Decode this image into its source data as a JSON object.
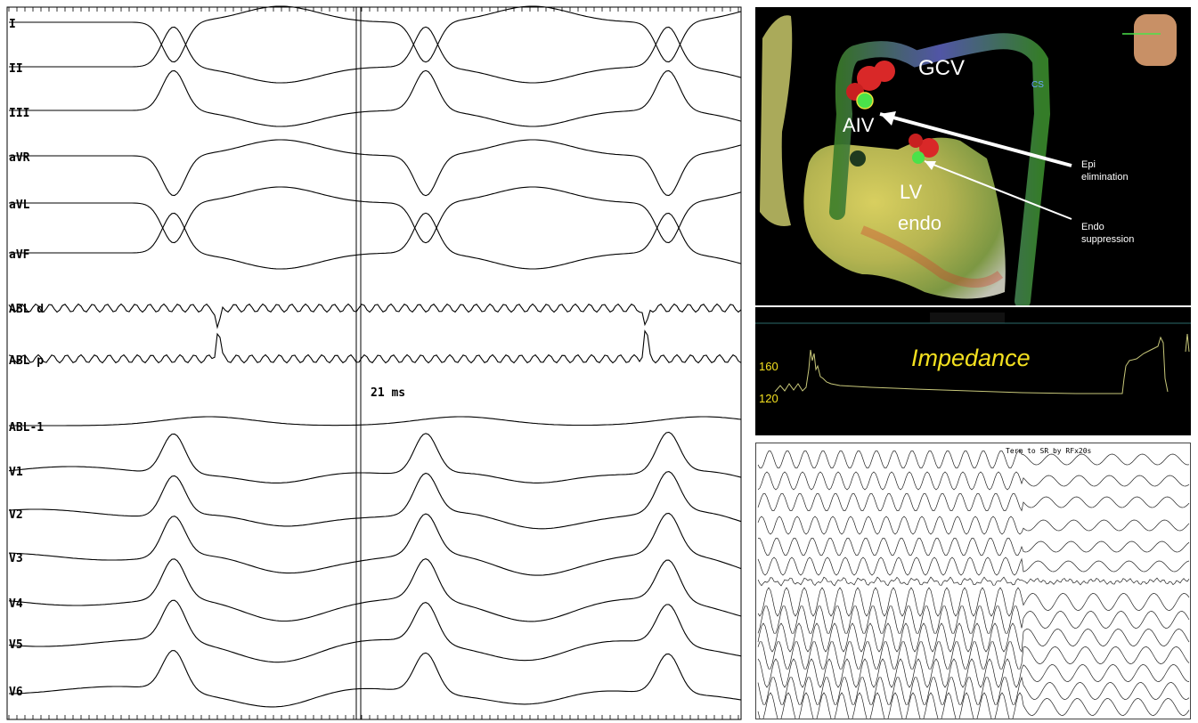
{
  "ecg": {
    "leads": [
      "I",
      "II",
      "III",
      "aVR",
      "aVL",
      "aVF",
      "ABL d",
      "ABL p",
      "ABL-1",
      "V1",
      "V2",
      "V3",
      "V4",
      "V5",
      "V6"
    ],
    "measurement": "21 ms"
  },
  "map": {
    "labels": {
      "gcv": "GCV",
      "cs": "CS",
      "aiv": "AIV",
      "lv": "LV",
      "endo": "endo"
    },
    "arrows": [
      {
        "line1": "Epi",
        "line2": "elimination"
      },
      {
        "line1": "Endo",
        "line2": "suppression"
      }
    ]
  },
  "impedance": {
    "title": "Impedance",
    "ticks": [
      "160",
      "120"
    ]
  },
  "strip": {
    "annotation": "Term to SR by RFx20s"
  }
}
